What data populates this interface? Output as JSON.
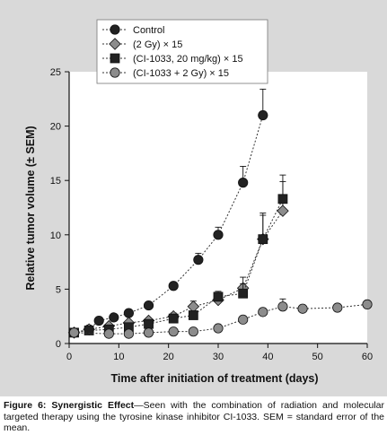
{
  "chart_data": {
    "type": "line",
    "xlabel": "Time after initiation of treatment (days)",
    "ylabel": "Relative tumor volume (± SEM)",
    "xlim": [
      0,
      60
    ],
    "ylim": [
      0,
      25
    ],
    "xticks": [
      0,
      10,
      20,
      30,
      40,
      50,
      60
    ],
    "yticks": [
      0,
      5,
      10,
      15,
      20,
      25
    ],
    "grid": false,
    "legend_position": "top-left",
    "series": [
      {
        "name": "Control",
        "marker": "circle",
        "color": "#222222",
        "x": [
          1,
          4,
          6,
          9,
          12,
          16,
          21,
          26,
          30,
          35,
          39
        ],
        "y": [
          1.0,
          1.3,
          2.1,
          2.4,
          2.8,
          3.5,
          5.3,
          7.7,
          10.0,
          14.8,
          21.0
        ],
        "err": [
          0,
          0,
          0.2,
          0.2,
          0.3,
          0.3,
          0.3,
          0.6,
          0.7,
          1.5,
          2.4
        ]
      },
      {
        "name": "(2 Gy) × 15",
        "marker": "diamond",
        "color": "#8c8c8c",
        "x": [
          1,
          4,
          8,
          12,
          16,
          21,
          25,
          30,
          35,
          39,
          43
        ],
        "y": [
          1.0,
          1.3,
          1.6,
          1.9,
          2.1,
          2.5,
          3.4,
          4.0,
          5.1,
          9.6,
          12.2
        ],
        "err": [
          0,
          0,
          0.2,
          0.2,
          0.2,
          0.3,
          0.5,
          0.5,
          1.0,
          2.4,
          2.7
        ]
      },
      {
        "name": "(CI-1033, 20 mg/kg) × 15",
        "marker": "square",
        "color": "#222222",
        "x": [
          1,
          4,
          8,
          12,
          16,
          21,
          25,
          30,
          35,
          39,
          43
        ],
        "y": [
          1.0,
          1.2,
          1.3,
          1.5,
          1.8,
          2.3,
          2.6,
          4.3,
          4.6,
          9.6,
          13.3
        ],
        "err": [
          0,
          0,
          0.1,
          0.2,
          0.2,
          0.3,
          0.3,
          0.5,
          0.9,
          2.2,
          2.2
        ]
      },
      {
        "name": "(CI-1033 + 2 Gy) × 15",
        "marker": "circle",
        "color": "#8c8c8c",
        "x": [
          1,
          8,
          12,
          16,
          21,
          25,
          30,
          35,
          39,
          43,
          47,
          54,
          60
        ],
        "y": [
          1.0,
          0.9,
          0.9,
          1.0,
          1.1,
          1.1,
          1.4,
          2.2,
          2.9,
          3.4,
          3.2,
          3.3,
          3.6
        ],
        "err": [
          0,
          0,
          0,
          0,
          0,
          0,
          0,
          0.3,
          0.3,
          0.7,
          0,
          0,
          0
        ]
      }
    ]
  },
  "caption": {
    "label": "Figure 6: Synergistic Effect",
    "text": "—Seen with the combination of radiation and molecular targeted therapy using the tyrosine kinase inhibitor CI-1033. SEM = standard error of the mean."
  }
}
